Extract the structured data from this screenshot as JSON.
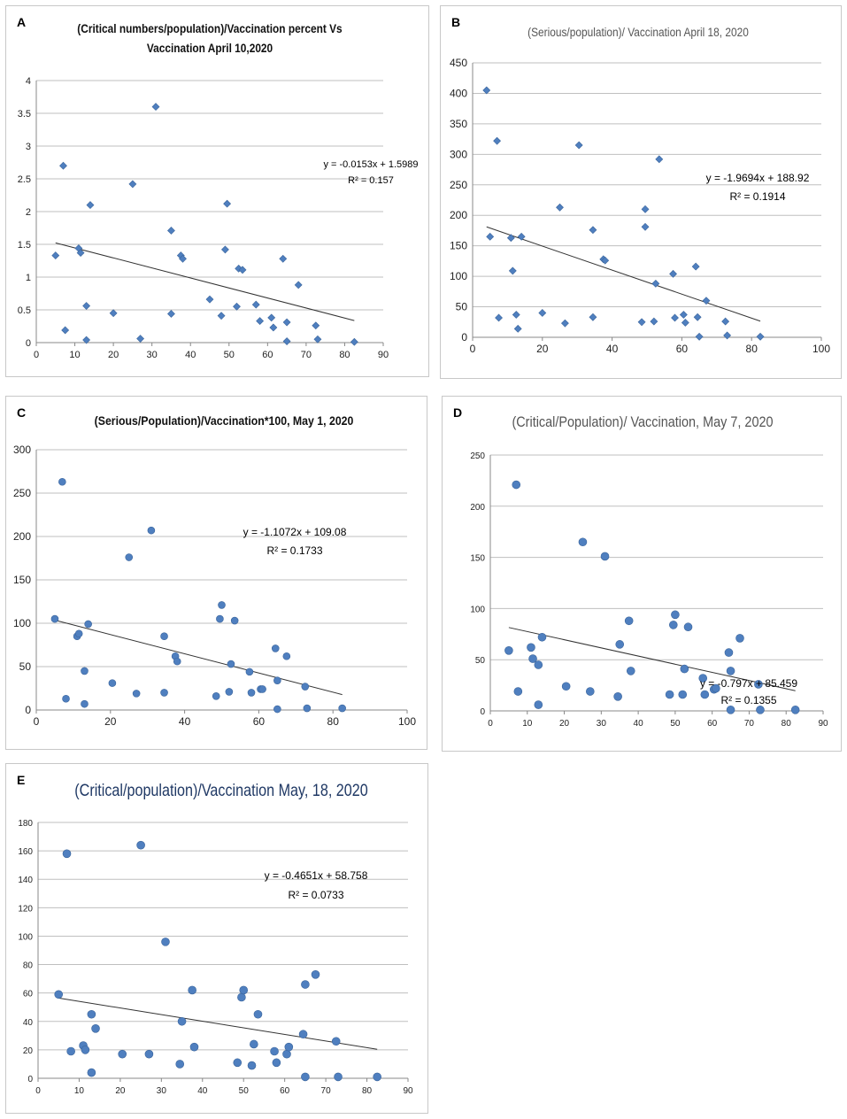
{
  "figure": {
    "panels": [
      {
        "id": "A",
        "letter": "A",
        "type": "scatter",
        "title_lines": [
          "(Critical numbers/population)/Vaccination percent Vs",
          "Vaccination April 10,2020"
        ],
        "equation": "y = -0.0153x + 1.5989",
        "r2": "R² = 0.157",
        "xlim": [
          0,
          90
        ],
        "ylim": [
          0,
          4
        ],
        "xticks": [
          0,
          10,
          20,
          30,
          40,
          50,
          60,
          70,
          80,
          90
        ],
        "yticks": [
          0,
          0.5,
          1,
          1.5,
          2,
          2.5,
          3,
          3.5,
          4
        ],
        "marker": "diamond",
        "trendline": {
          "slope": -0.0153,
          "intercept": 1.5989,
          "x_range": [
            5,
            82.5
          ]
        },
        "x": [
          5,
          7,
          7.5,
          11,
          11.5,
          13,
          13,
          14,
          20,
          25,
          27,
          31,
          35,
          35,
          37.5,
          38,
          45,
          48,
          49,
          49.5,
          52,
          52.5,
          53.5,
          57,
          58,
          61,
          61.5,
          64,
          65,
          65,
          68,
          72.5,
          73,
          82.5
        ],
        "y": [
          1.33,
          2.7,
          0.19,
          1.44,
          1.37,
          0.56,
          0.04,
          2.1,
          0.45,
          2.42,
          0.06,
          3.6,
          1.71,
          0.44,
          1.33,
          1.28,
          0.66,
          0.41,
          1.42,
          2.12,
          0.55,
          1.13,
          1.11,
          0.58,
          0.33,
          0.38,
          0.23,
          1.28,
          0.31,
          0.02,
          0.88,
          0.26,
          0.05,
          0.01
        ]
      },
      {
        "id": "B",
        "letter": "B",
        "type": "scatter",
        "title_lines": [
          "(Serious/population)/ Vaccination April 18, 2020"
        ],
        "equation": "y = -1.9694x + 188.92",
        "r2": "R² = 0.1914",
        "xlim": [
          0,
          100
        ],
        "ylim": [
          0,
          450
        ],
        "xticks": [
          0,
          20,
          40,
          60,
          80,
          100
        ],
        "yticks": [
          0,
          50,
          100,
          150,
          200,
          250,
          300,
          350,
          400,
          450
        ],
        "marker": "diamond",
        "trendline": {
          "slope": -1.9694,
          "intercept": 188.92,
          "x_range": [
            4,
            82.5
          ]
        },
        "x": [
          4,
          5,
          7,
          7.5,
          11,
          11.5,
          12.5,
          13,
          14,
          20,
          25,
          26.5,
          30.5,
          34.5,
          34.5,
          37.5,
          38,
          48.5,
          49.5,
          49.5,
          52,
          52.5,
          53.5,
          57.5,
          58,
          60.5,
          61,
          64,
          64.5,
          65,
          67,
          72.5,
          73,
          82.5
        ],
        "y": [
          405,
          165,
          322,
          32,
          163,
          109,
          37,
          14,
          165,
          40,
          213,
          23,
          315,
          33,
          176,
          128,
          126,
          25,
          210,
          181,
          26,
          88,
          292,
          104,
          32,
          37,
          24,
          116,
          33,
          1,
          60,
          26,
          3,
          1
        ]
      },
      {
        "id": "C",
        "letter": "C",
        "type": "scatter",
        "title_lines": [
          "(Serious/Population)/Vaccination*100, May 1, 2020"
        ],
        "equation": "y = -1.1072x + 109.08",
        "r2": "R² = 0.1733",
        "xlim": [
          0,
          100
        ],
        "ylim": [
          0,
          300
        ],
        "xticks": [
          0,
          20,
          40,
          60,
          80,
          100
        ],
        "yticks": [
          0,
          50,
          100,
          150,
          200,
          250,
          300
        ],
        "marker": "circle",
        "trendline": {
          "slope": -1.1072,
          "intercept": 109.08,
          "x_range": [
            5,
            82.5
          ]
        },
        "x": [
          5,
          7,
          8,
          11,
          11.5,
          13,
          13,
          14,
          20.5,
          25,
          27,
          31,
          34.5,
          34.5,
          37.5,
          38,
          48.5,
          49.5,
          50,
          52,
          52.5,
          53.5,
          57.5,
          58,
          60.5,
          61,
          64.5,
          65,
          65,
          67.5,
          72.5,
          73,
          82.5
        ],
        "y": [
          105,
          263,
          13,
          85,
          88,
          45,
          7,
          99,
          31,
          176,
          19,
          207,
          20,
          85,
          62,
          56,
          16,
          105,
          121,
          21,
          53,
          103,
          44,
          20,
          24,
          24,
          71,
          34,
          1,
          62,
          27,
          2,
          2
        ]
      },
      {
        "id": "D",
        "letter": "D",
        "type": "scatter",
        "title_lines": [
          "(Critical/Population)/ Vaccination, May 7, 2020"
        ],
        "equation": "y = -0.797x + 85.459",
        "r2": "R² = 0.1355",
        "xlim": [
          0,
          90
        ],
        "ylim": [
          0,
          250
        ],
        "xticks": [
          0,
          10,
          20,
          30,
          40,
          50,
          60,
          70,
          80,
          90
        ],
        "yticks": [
          0,
          50,
          100,
          150,
          200,
          250
        ],
        "marker": "circle",
        "trendline": {
          "slope": -0.797,
          "intercept": 85.459,
          "x_range": [
            5,
            82.5
          ]
        },
        "x": [
          5,
          7,
          7.5,
          11,
          11.5,
          13,
          13,
          14,
          20.5,
          25,
          27,
          31,
          34.5,
          35,
          37.5,
          38,
          48.5,
          49.5,
          50,
          52,
          52.5,
          53.5,
          57.5,
          58,
          60.5,
          61,
          64.5,
          65,
          65,
          67.5,
          72.5,
          73,
          82.5
        ],
        "y": [
          59,
          221,
          19,
          62,
          51,
          6,
          45,
          72,
          24,
          165,
          19,
          151,
          14,
          65,
          88,
          39,
          16,
          84,
          94,
          16,
          41,
          82,
          32,
          16,
          21,
          22,
          57,
          39,
          1,
          71,
          26,
          1,
          1
        ]
      },
      {
        "id": "E",
        "letter": "E",
        "type": "scatter",
        "title_lines": [
          "(Critical/population)/Vaccination May, 18, 2020"
        ],
        "equation": "y = -0.4651x + 58.758",
        "r2": "R² = 0.0733",
        "xlim": [
          0,
          90
        ],
        "ylim": [
          0,
          180
        ],
        "xticks": [
          0,
          10,
          20,
          30,
          40,
          50,
          60,
          70,
          80,
          90
        ],
        "yticks": [
          0,
          20,
          40,
          60,
          80,
          100,
          120,
          140,
          160,
          180
        ],
        "marker": "circle",
        "trendline": {
          "slope": -0.4651,
          "intercept": 58.758,
          "x_range": [
            5,
            82.5
          ]
        },
        "x": [
          5,
          7,
          8,
          11,
          11.5,
          13,
          13,
          14,
          20.5,
          25,
          27,
          31,
          34.5,
          35,
          37.5,
          38,
          48.5,
          49.5,
          50,
          52,
          52.5,
          53.5,
          57.5,
          58,
          60.5,
          61,
          64.5,
          65,
          65,
          67.5,
          72.5,
          73,
          82.5
        ],
        "y": [
          59,
          158,
          19,
          23,
          20,
          4,
          45,
          35,
          17,
          164,
          17,
          96,
          10,
          40,
          62,
          22,
          11,
          57,
          62,
          9,
          24,
          45,
          19,
          11,
          17,
          22,
          31,
          66,
          1,
          73,
          26,
          1,
          1
        ]
      }
    ]
  },
  "styles": {
    "axis_color": "#888888",
    "grid_color": "#bfbfbf",
    "marker_color": "#4f7fbf",
    "marker_edge": "#3a649b",
    "trend_color": "#333333",
    "text_color": "#222222",
    "title_dark": "#111111",
    "title_gray": "#555555",
    "title_blue": "#1f3864"
  }
}
